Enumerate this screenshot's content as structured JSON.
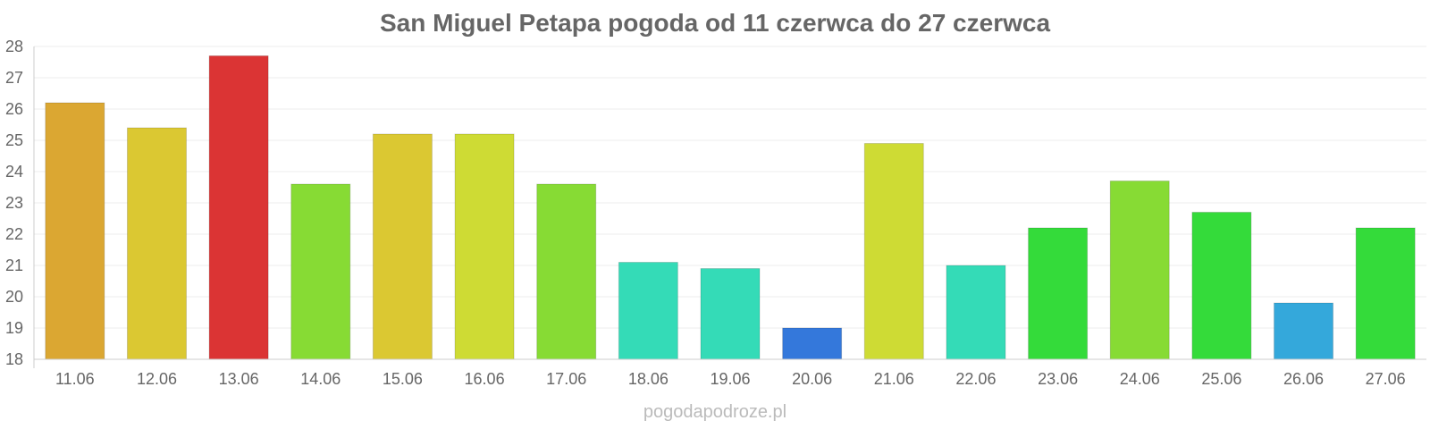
{
  "chart_data": {
    "type": "bar",
    "title": "San Miguel Petapa pogoda od 11 czerwca do 27 czerwca",
    "xlabel": "",
    "ylabel": "",
    "ylim": [
      18,
      28
    ],
    "yticks": [
      18,
      19,
      20,
      21,
      22,
      23,
      24,
      25,
      26,
      27,
      28
    ],
    "grid": true,
    "categories": [
      "11.06",
      "12.06",
      "13.06",
      "14.06",
      "15.06",
      "16.06",
      "17.06",
      "18.06",
      "19.06",
      "20.06",
      "21.06",
      "22.06",
      "23.06",
      "24.06",
      "25.06",
      "26.06",
      "27.06"
    ],
    "values": [
      26.2,
      25.4,
      27.7,
      23.6,
      25.2,
      25.2,
      23.6,
      21.1,
      20.9,
      19.0,
      24.9,
      21.0,
      22.2,
      23.7,
      22.7,
      19.8,
      22.2
    ],
    "colors": [
      "#dba732",
      "#dbc832",
      "#db3434",
      "#87db34",
      "#dbc832",
      "#cedb34",
      "#87db34",
      "#34dbb7",
      "#34dbb7",
      "#3478db",
      "#cedb34",
      "#34dbb7",
      "#34db3a",
      "#87db34",
      "#34db3a",
      "#34a8db",
      "#34db3a"
    ]
  },
  "watermark": "pogodapodroze.pl"
}
